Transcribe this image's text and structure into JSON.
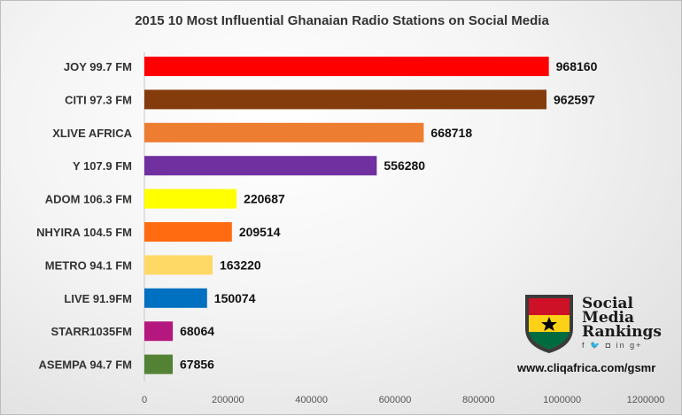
{
  "chart_data": {
    "type": "bar",
    "orientation": "horizontal",
    "title": "2015 10 Most Influential Ghanaian Radio Stations on Social Media",
    "xlabel": "",
    "ylabel": "",
    "xlim": [
      0,
      1200000
    ],
    "ticks": [
      "0",
      "200000",
      "400000",
      "600000",
      "800000",
      "1000000",
      "1200000"
    ],
    "grid": false,
    "legend": "none",
    "categories": [
      "JOY 99.7 FM",
      "CITI 97.3 FM",
      "XLIVE AFRICA",
      "Y 107.9 FM",
      "ADOM 106.3 FM",
      "NHYIRA 104.5 FM",
      "METRO 94.1 FM",
      "LIVE 91.9FM",
      "STARR1035FM",
      "ASEMPA 94.7 FM"
    ],
    "values": [
      968160,
      962597,
      668718,
      556280,
      220687,
      209514,
      163220,
      150074,
      68064,
      67856
    ],
    "colors": [
      "#ff0000",
      "#843c0c",
      "#ed7d31",
      "#7030a0",
      "#ffff00",
      "#ff6b10",
      "#ffd966",
      "#0070c0",
      "#b4187e",
      "#548235"
    ]
  },
  "logo": {
    "name_lines": [
      "Social",
      "Media",
      "Rankings"
    ],
    "icons": "f 🐦 ◘ in g+"
  },
  "source": "www.cliqafrica.com/gsmr"
}
